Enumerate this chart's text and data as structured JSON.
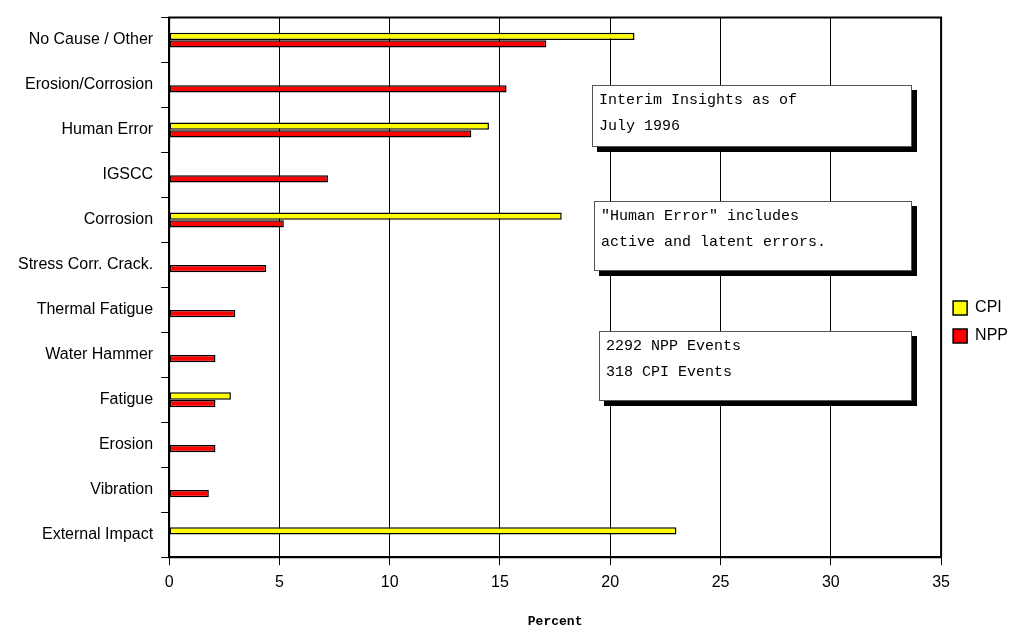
{
  "chart_data": {
    "type": "bar",
    "orientation": "horizontal",
    "xlabel": "Percent",
    "categories": [
      "No Cause / Other",
      "Erosion/Corrosion",
      "Human Error",
      "IGSCC",
      "Corrosion",
      "Stress Corr. Crack.",
      "Thermal Fatigue",
      "Water Hammer",
      "Fatigue",
      "Erosion",
      "Vibration",
      "External Impact"
    ],
    "series": [
      {
        "name": "CPI",
        "color": "#ffff00",
        "values": [
          21.1,
          null,
          14.5,
          null,
          17.8,
          null,
          null,
          null,
          2.8,
          null,
          null,
          23.0
        ]
      },
      {
        "name": "NPP",
        "color": "#ff0000",
        "values": [
          17.1,
          15.3,
          13.7,
          7.2,
          5.2,
          4.4,
          3.0,
          2.1,
          2.1,
          2.1,
          1.8,
          null
        ]
      }
    ],
    "xlim": [
      0,
      35
    ],
    "xticks": [
      0,
      5,
      10,
      15,
      20,
      25,
      30,
      35
    ],
    "grid": "x",
    "legend": "right",
    "annotations": [
      "Interim Insights as of\nJuly 1996",
      "\"Human Error\" includes\nactive and latent errors.",
      "2292 NPP Events\n318 CPI Events"
    ]
  }
}
